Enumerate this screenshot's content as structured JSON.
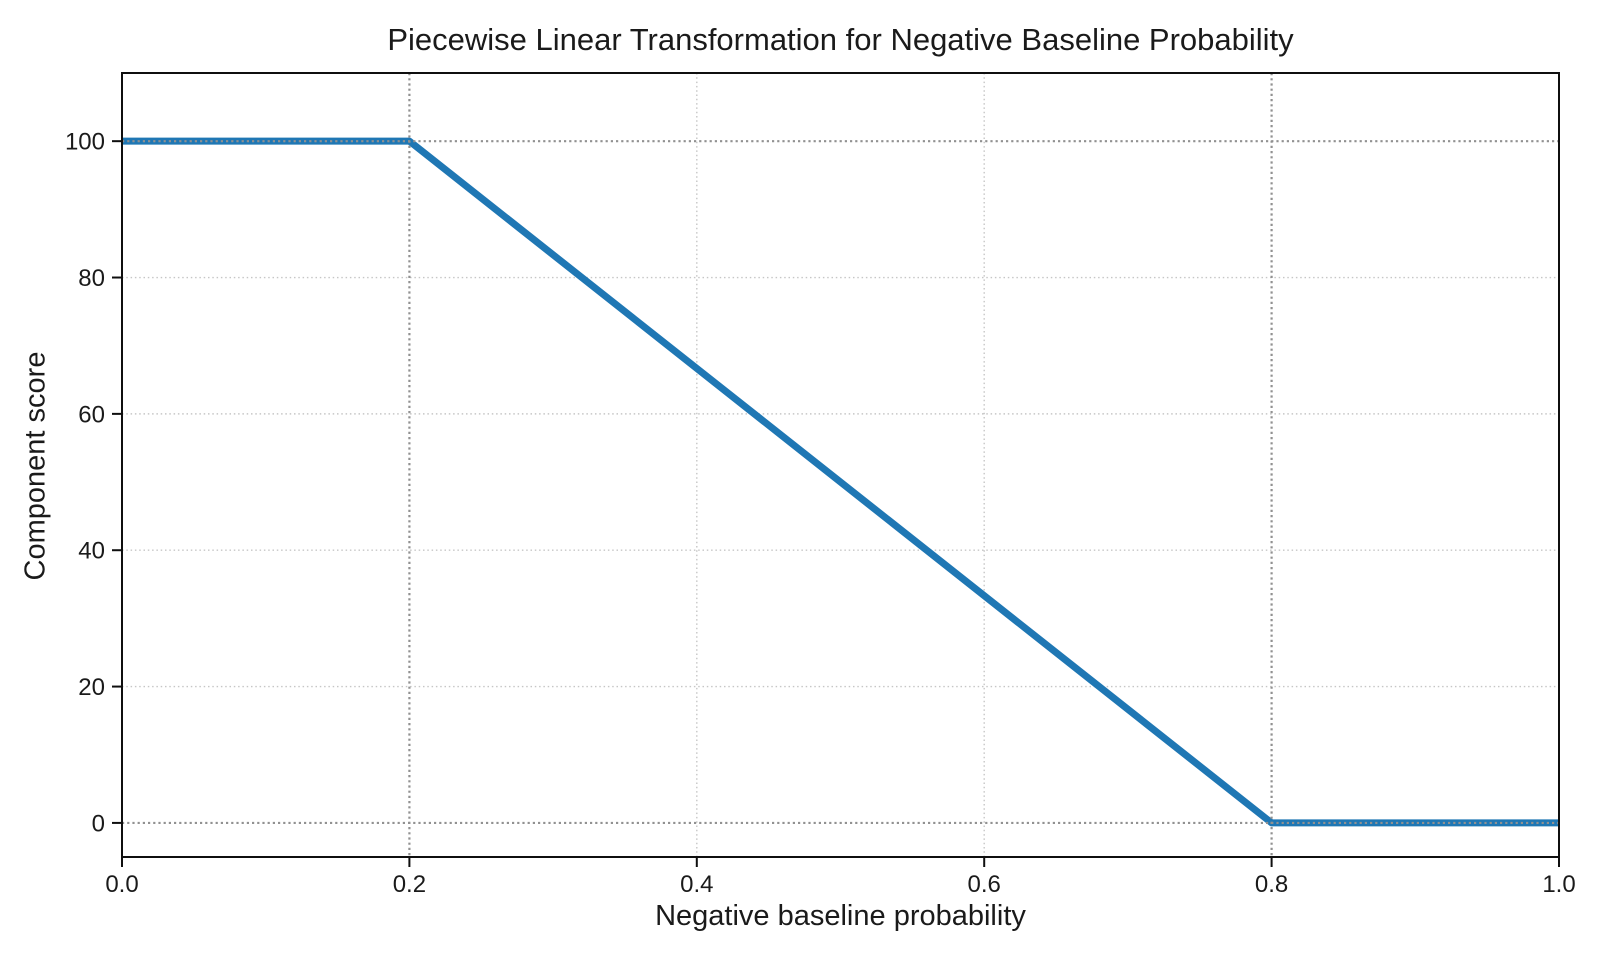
{
  "chart_data": {
    "type": "line",
    "title": "Piecewise Linear Transformation for Negative Baseline Probability",
    "xlabel": "Negative baseline probability",
    "ylabel": "Component score",
    "series": [
      {
        "name": "component-score",
        "x": [
          0.0,
          0.2,
          0.8,
          1.0
        ],
        "y": [
          100,
          100,
          0,
          0
        ],
        "color": "#1f77b4",
        "linewidth": 7
      }
    ],
    "breakpoints": {
      "flat_high_until_x": 0.2,
      "flat_low_from_x": 0.8,
      "high_value": 100,
      "low_value": 0
    },
    "xticks": [
      0.0,
      0.2,
      0.4,
      0.6,
      0.8,
      1.0
    ],
    "xtick_labels": [
      "0.0",
      "0.2",
      "0.4",
      "0.6",
      "0.8",
      "1.0"
    ],
    "yticks": [
      0,
      20,
      40,
      60,
      80,
      100
    ],
    "ytick_labels": [
      "0",
      "20",
      "40",
      "60",
      "80",
      "100"
    ],
    "xlim": [
      0.0,
      1.0
    ],
    "ylim": [
      -5,
      110
    ],
    "grid": true,
    "grid_color": "#c6c6c6",
    "reference_lines": {
      "x": [
        0.2,
        0.8
      ],
      "y": [
        0,
        100
      ],
      "color": "#919191"
    },
    "legend_position": "none",
    "background_color": "#ffffff",
    "spine_color": "#0f0f0f",
    "text_color": "#1a1a1a"
  }
}
